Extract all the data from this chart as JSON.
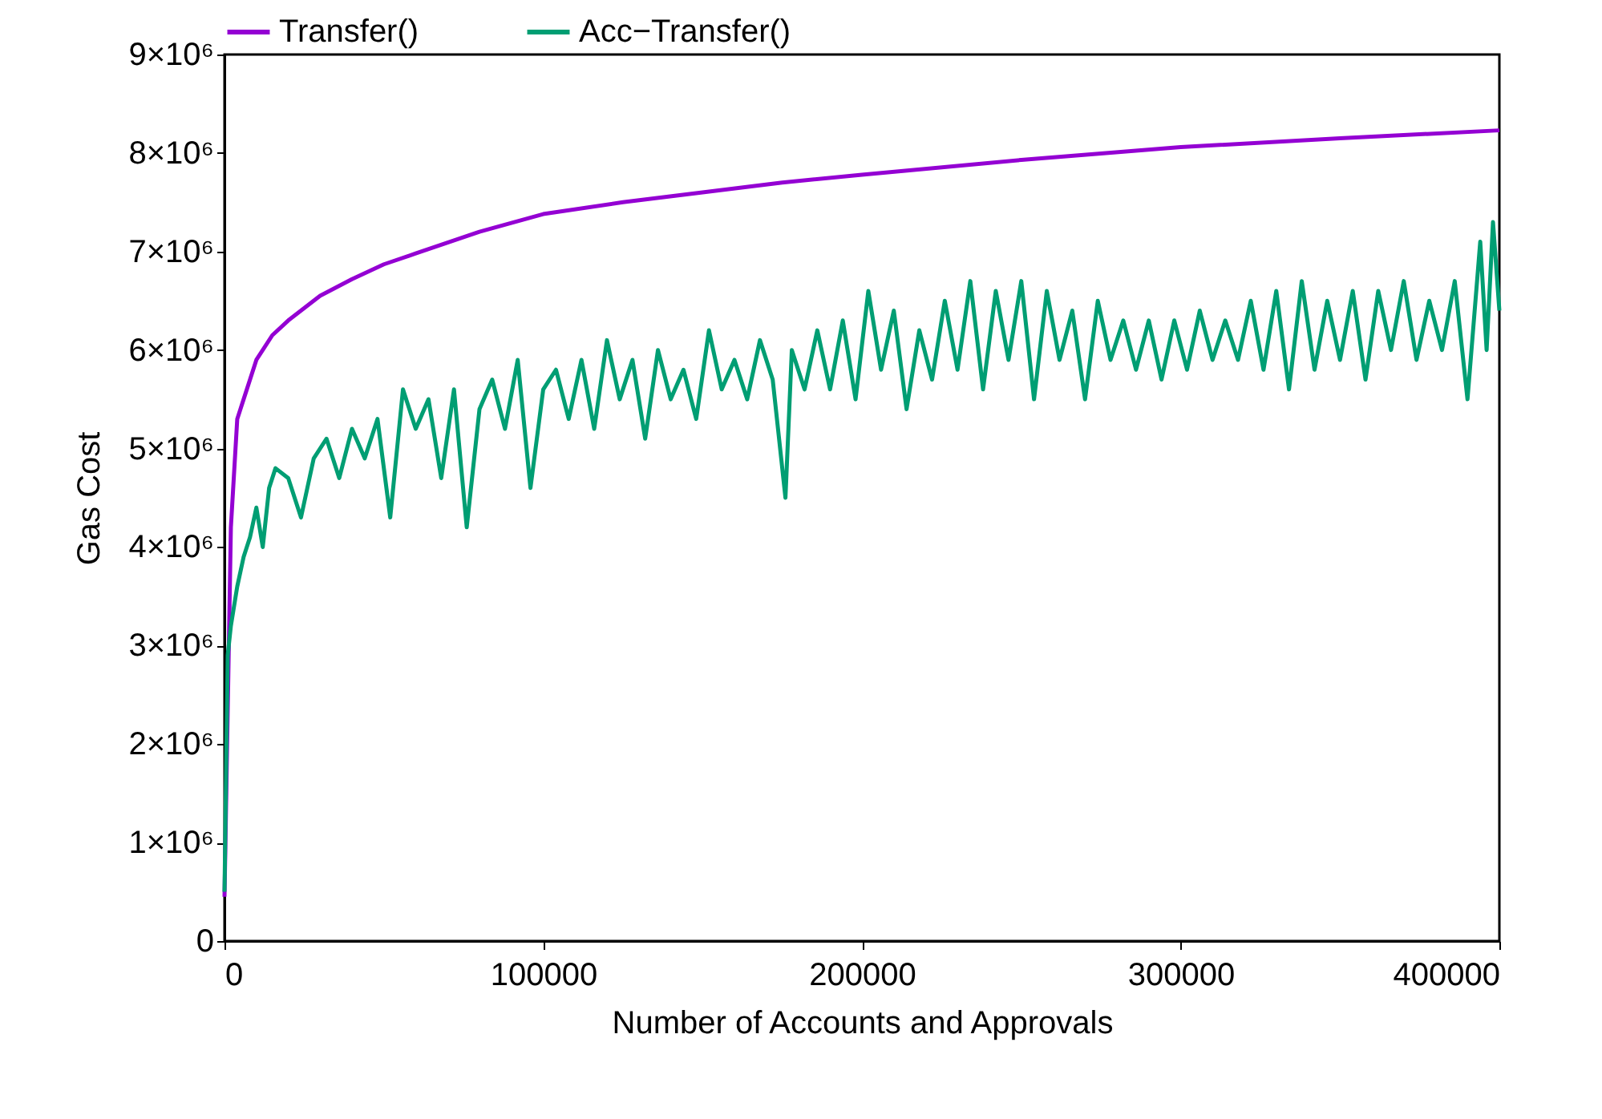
{
  "chart_data": {
    "type": "line",
    "xlabel": "Number of Accounts and Approvals",
    "ylabel": "Gas Cost",
    "xlim": [
      0,
      400000
    ],
    "xticks": [
      0,
      100000,
      200000,
      300000,
      400000
    ],
    "ylim": [
      0,
      9000000
    ],
    "yticks": [
      0,
      {
        "value": 1000000,
        "label": "1×10⁶"
      },
      {
        "value": 2000000,
        "label": "2×10⁶"
      },
      {
        "value": 3000000,
        "label": "3×10⁶"
      },
      {
        "value": 4000000,
        "label": "4×10⁶"
      },
      {
        "value": 5000000,
        "label": "5×10⁶"
      },
      {
        "value": 6000000,
        "label": "6×10⁶"
      },
      {
        "value": 7000000,
        "label": "7×10⁶"
      },
      {
        "value": 8000000,
        "label": "8×10⁶"
      },
      {
        "value": 9000000,
        "label": "9×10⁶"
      }
    ],
    "grid": false,
    "legend": "top",
    "marker": "none",
    "line_style": "solid",
    "series": [
      {
        "name": "Transfer()",
        "color": "#9400d3",
        "x": [
          0,
          2000,
          4000,
          6000,
          10000,
          15000,
          20000,
          30000,
          40000,
          50000,
          60000,
          80000,
          100000,
          125000,
          150000,
          175000,
          200000,
          250000,
          300000,
          350000,
          400000
        ],
        "values": [
          450000,
          4200000,
          5300000,
          5500000,
          5900000,
          6150000,
          6300000,
          6550000,
          6720000,
          6870000,
          6980000,
          7200000,
          7380000,
          7500000,
          7600000,
          7700000,
          7780000,
          7930000,
          8060000,
          8150000,
          8230000
        ]
      },
      {
        "name": "Acc−Transfer()",
        "color": "#009e73",
        "x": [
          0,
          1000,
          2000,
          4000,
          6000,
          8000,
          10000,
          12000,
          14000,
          16000,
          20000,
          24000,
          28000,
          32000,
          36000,
          40000,
          44000,
          48000,
          52000,
          56000,
          60000,
          64000,
          68000,
          72000,
          76000,
          80000,
          84000,
          88000,
          92000,
          96000,
          100000,
          104000,
          108000,
          112000,
          116000,
          120000,
          124000,
          128000,
          132000,
          136000,
          140000,
          144000,
          148000,
          152000,
          156000,
          160000,
          164000,
          168000,
          172000,
          176000,
          178000,
          182000,
          186000,
          190000,
          194000,
          198000,
          202000,
          206000,
          210000,
          214000,
          218000,
          222000,
          226000,
          230000,
          234000,
          238000,
          242000,
          246000,
          250000,
          254000,
          258000,
          262000,
          266000,
          270000,
          274000,
          278000,
          282000,
          286000,
          290000,
          294000,
          298000,
          302000,
          306000,
          310000,
          314000,
          318000,
          322000,
          326000,
          330000,
          334000,
          338000,
          342000,
          346000,
          350000,
          354000,
          358000,
          362000,
          366000,
          370000,
          374000,
          378000,
          382000,
          386000,
          390000,
          394000,
          396000,
          398000,
          400000
        ],
        "values": [
          500000,
          2900000,
          3200000,
          3600000,
          3900000,
          4100000,
          4400000,
          4000000,
          4600000,
          4800000,
          4700000,
          4300000,
          4900000,
          5100000,
          4700000,
          5200000,
          4900000,
          5300000,
          4300000,
          5600000,
          5200000,
          5500000,
          4700000,
          5600000,
          4200000,
          5400000,
          5700000,
          5200000,
          5900000,
          4600000,
          5600000,
          5800000,
          5300000,
          5900000,
          5200000,
          6100000,
          5500000,
          5900000,
          5100000,
          6000000,
          5500000,
          5800000,
          5300000,
          6200000,
          5600000,
          5900000,
          5500000,
          6100000,
          5700000,
          4500000,
          6000000,
          5600000,
          6200000,
          5600000,
          6300000,
          5500000,
          6600000,
          5800000,
          6400000,
          5400000,
          6200000,
          5700000,
          6500000,
          5800000,
          6700000,
          5600000,
          6600000,
          5900000,
          6700000,
          5500000,
          6600000,
          5900000,
          6400000,
          5500000,
          6500000,
          5900000,
          6300000,
          5800000,
          6300000,
          5700000,
          6300000,
          5800000,
          6400000,
          5900000,
          6300000,
          5900000,
          6500000,
          5800000,
          6600000,
          5600000,
          6700000,
          5800000,
          6500000,
          5900000,
          6600000,
          5700000,
          6600000,
          6000000,
          6700000,
          5900000,
          6500000,
          6000000,
          6700000,
          5500000,
          7100000,
          6000000,
          7300000,
          6400000
        ]
      }
    ]
  }
}
